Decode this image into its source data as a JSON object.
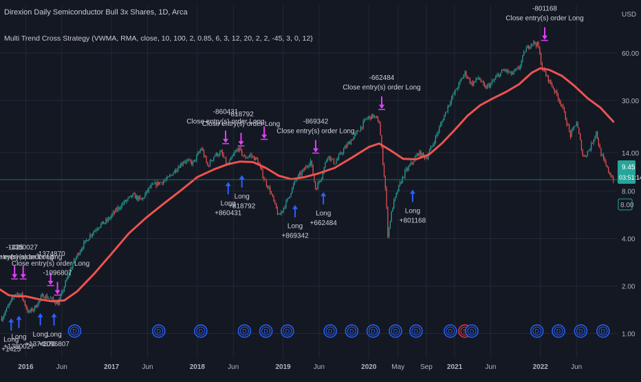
{
  "header": {
    "title": "Direxion Daily Semiconductor Bull 3x Shares, 1D, Arca",
    "subtitle": "Multi Trend Cross Strategy (VWMA, RMA, close, 10, 100, 2, 0.85, 6, 3, 12, 20, 2, 2, -45, 3, 0, 12)"
  },
  "colors": {
    "background": "#141823",
    "grid": "#232837",
    "ma_line": "#ef5350",
    "candle_up": "#26a69a",
    "candle_down": "#ef5350",
    "entry_arrow": "#2962ff",
    "exit_arrow": "#e040fb",
    "price_badge": "#26a69a",
    "dividend_marker": "#2962ff",
    "split_marker": "#f23645"
  },
  "chart_data": {
    "type": "candlestick",
    "title": "Direxion Daily Semiconductor Bull 3x Shares, 1D, Arca",
    "y_scale": "log",
    "currency": "USD",
    "ylim": [
      0.7,
      120
    ],
    "y_ticks": [
      "1.00",
      "2.00",
      "4.00",
      "8.00",
      "14.00",
      "30.00",
      "60.00"
    ],
    "x_ticks": [
      "2016",
      "Jun",
      "2017",
      "Jun",
      "2018",
      "Jun",
      "2019",
      "Jun",
      "2020",
      "May",
      "Sep",
      "2021",
      "Jun",
      "2022",
      "Jun"
    ],
    "x_tick_positions": [
      2016.0,
      2016.42,
      2017.0,
      2017.42,
      2018.0,
      2018.42,
      2019.0,
      2019.42,
      2020.0,
      2020.34,
      2020.67,
      2021.0,
      2021.42,
      2022.0,
      2022.42
    ],
    "xlim": [
      2015.7,
      2022.9
    ],
    "price_path": [
      [
        2015.72,
        1.25
      ],
      [
        2015.8,
        1.5
      ],
      [
        2015.88,
        1.8
      ],
      [
        2015.95,
        1.75
      ],
      [
        2016.03,
        1.35
      ],
      [
        2016.1,
        1.45
      ],
      [
        2016.2,
        1.75
      ],
      [
        2016.3,
        1.65
      ],
      [
        2016.38,
        1.55
      ],
      [
        2016.45,
        2.0
      ],
      [
        2016.55,
        2.8
      ],
      [
        2016.65,
        3.5
      ],
      [
        2016.75,
        4.2
      ],
      [
        2016.85,
        4.8
      ],
      [
        2016.95,
        5.2
      ],
      [
        2017.05,
        6.0
      ],
      [
        2017.15,
        6.8
      ],
      [
        2017.25,
        7.5
      ],
      [
        2017.35,
        7.0
      ],
      [
        2017.45,
        8.5
      ],
      [
        2017.55,
        9.0
      ],
      [
        2017.65,
        9.5
      ],
      [
        2017.75,
        11.0
      ],
      [
        2017.85,
        12.5
      ],
      [
        2017.95,
        12.0
      ],
      [
        2018.05,
        15.0
      ],
      [
        2018.12,
        11.5
      ],
      [
        2018.2,
        13.5
      ],
      [
        2018.28,
        14.0
      ],
      [
        2018.35,
        11.5
      ],
      [
        2018.42,
        13.5
      ],
      [
        2018.48,
        15.0
      ],
      [
        2018.55,
        13.0
      ],
      [
        2018.62,
        13.5
      ],
      [
        2018.7,
        12.5
      ],
      [
        2018.78,
        9.5
      ],
      [
        2018.85,
        8.0
      ],
      [
        2018.95,
        5.5
      ],
      [
        2019.05,
        7.0
      ],
      [
        2019.15,
        9.5
      ],
      [
        2019.25,
        11.0
      ],
      [
        2019.32,
        12.5
      ],
      [
        2019.38,
        8.2
      ],
      [
        2019.45,
        10.0
      ],
      [
        2019.52,
        13.5
      ],
      [
        2019.6,
        12.0
      ],
      [
        2019.7,
        14.5
      ],
      [
        2019.8,
        17.0
      ],
      [
        2019.9,
        20.0
      ],
      [
        2019.97,
        23.0
      ],
      [
        2020.05,
        24.0
      ],
      [
        2020.12,
        22.0
      ],
      [
        2020.2,
        7.5
      ],
      [
        2020.22,
        4.2
      ],
      [
        2020.28,
        6.5
      ],
      [
        2020.35,
        8.5
      ],
      [
        2020.42,
        10.5
      ],
      [
        2020.5,
        12.0
      ],
      [
        2020.58,
        14.0
      ],
      [
        2020.67,
        13.0
      ],
      [
        2020.75,
        16.0
      ],
      [
        2020.85,
        22.0
      ],
      [
        2020.95,
        30.0
      ],
      [
        2021.05,
        38.0
      ],
      [
        2021.12,
        45.0
      ],
      [
        2021.2,
        38.0
      ],
      [
        2021.28,
        42.0
      ],
      [
        2021.35,
        36.0
      ],
      [
        2021.42,
        38.0
      ],
      [
        2021.5,
        43.0
      ],
      [
        2021.58,
        47.0
      ],
      [
        2021.66,
        44.0
      ],
      [
        2021.75,
        48.0
      ],
      [
        2021.82,
        62.0
      ],
      [
        2021.9,
        70.0
      ],
      [
        2021.97,
        68.0
      ],
      [
        2022.02,
        48.0
      ],
      [
        2022.08,
        42.0
      ],
      [
        2022.15,
        36.0
      ],
      [
        2022.25,
        28.0
      ],
      [
        2022.35,
        18.0
      ],
      [
        2022.42,
        22.0
      ],
      [
        2022.5,
        13.0
      ],
      [
        2022.58,
        15.0
      ],
      [
        2022.65,
        19.0
      ],
      [
        2022.7,
        14.0
      ],
      [
        2022.78,
        11.0
      ],
      [
        2022.85,
        9.45
      ]
    ],
    "moving_average": [
      [
        2015.7,
        1.9
      ],
      [
        2015.8,
        1.75
      ],
      [
        2015.9,
        1.72
      ],
      [
        2016.0,
        1.72
      ],
      [
        2016.15,
        1.65
      ],
      [
        2016.3,
        1.6
      ],
      [
        2016.45,
        1.62
      ],
      [
        2016.6,
        1.85
      ],
      [
        2016.8,
        2.4
      ],
      [
        2017.0,
        3.2
      ],
      [
        2017.2,
        4.3
      ],
      [
        2017.4,
        5.4
      ],
      [
        2017.6,
        6.6
      ],
      [
        2017.8,
        8.0
      ],
      [
        2018.0,
        9.8
      ],
      [
        2018.2,
        11.0
      ],
      [
        2018.35,
        11.8
      ],
      [
        2018.5,
        12.3
      ],
      [
        2018.65,
        12.2
      ],
      [
        2018.8,
        11.2
      ],
      [
        2018.95,
        10.0
      ],
      [
        2019.1,
        9.5
      ],
      [
        2019.25,
        9.8
      ],
      [
        2019.4,
        10.3
      ],
      [
        2019.6,
        11.2
      ],
      [
        2019.8,
        13.0
      ],
      [
        2020.0,
        15.2
      ],
      [
        2020.12,
        16.0
      ],
      [
        2020.25,
        14.5
      ],
      [
        2020.4,
        12.8
      ],
      [
        2020.55,
        12.7
      ],
      [
        2020.7,
        13.6
      ],
      [
        2020.85,
        16.0
      ],
      [
        2021.0,
        19.5
      ],
      [
        2021.15,
        24.0
      ],
      [
        2021.3,
        28.0
      ],
      [
        2021.45,
        31.0
      ],
      [
        2021.6,
        34.0
      ],
      [
        2021.75,
        38.0
      ],
      [
        2021.9,
        45.0
      ],
      [
        2022.0,
        48.0
      ],
      [
        2022.1,
        47.0
      ],
      [
        2022.25,
        43.0
      ],
      [
        2022.4,
        37.0
      ],
      [
        2022.55,
        31.0
      ],
      [
        2022.7,
        27.0
      ],
      [
        2022.85,
        22.0
      ]
    ],
    "signals": [
      {
        "type": "entry",
        "x": 2015.83,
        "price": 1.3,
        "labels": [
          "Long",
          "+1425"
        ]
      },
      {
        "type": "entry",
        "x": 2015.92,
        "price": 1.35,
        "labels": [
          "Long",
          "+1380027"
        ]
      },
      {
        "type": "entry",
        "x": 2016.17,
        "price": 1.4,
        "labels": [
          "Long",
          "+1374870"
        ]
      },
      {
        "type": "entry",
        "x": 2016.33,
        "price": 1.4,
        "labels": [
          "Long",
          "+1096807"
        ]
      },
      {
        "type": "exit",
        "x": 2015.87,
        "price": 2.15,
        "labels": [
          "-1425",
          "Close entry(s) order Long"
        ]
      },
      {
        "type": "exit",
        "x": 2015.97,
        "price": 2.15,
        "labels": [
          "-1380027",
          "Close entry(s) order Long"
        ]
      },
      {
        "type": "exit",
        "x": 2016.29,
        "price": 1.95,
        "labels": [
          "-1374870",
          "Close entry(s) order Long"
        ]
      },
      {
        "type": "exit",
        "x": 2016.37,
        "price": 1.7,
        "labels": [
          "-1096807"
        ]
      },
      {
        "type": "entry",
        "x": 2018.36,
        "price": 9.5,
        "labels": [
          "Long",
          "+860431"
        ]
      },
      {
        "type": "entry",
        "x": 2018.52,
        "price": 10.5,
        "labels": [
          "Long",
          "+818792"
        ]
      },
      {
        "type": "exit",
        "x": 2018.33,
        "price": 15.5,
        "labels": [
          "-860431",
          "Close entry(s) order Long"
        ]
      },
      {
        "type": "exit",
        "x": 2018.51,
        "price": 15.0,
        "labels": [
          "-818792",
          "Close entry(s) order Long"
        ]
      },
      {
        "type": "exit",
        "x": 2018.78,
        "price": 16.5,
        "labels": []
      },
      {
        "type": "entry",
        "x": 2019.14,
        "price": 6.8,
        "labels": [
          "Long",
          "+869342"
        ]
      },
      {
        "type": "entry",
        "x": 2019.47,
        "price": 8.2,
        "labels": [
          "Long",
          "+662484"
        ]
      },
      {
        "type": "exit",
        "x": 2019.38,
        "price": 13.5,
        "labels": [
          "-869342",
          "Close entry(s) order Long"
        ]
      },
      {
        "type": "exit",
        "x": 2020.15,
        "price": 25.5,
        "labels": [
          "-662484",
          "Close entry(s) order Long"
        ]
      },
      {
        "type": "entry",
        "x": 2020.51,
        "price": 8.5,
        "labels": [
          "Long",
          "+801168"
        ]
      },
      {
        "type": "exit",
        "x": 2022.05,
        "price": 70.0,
        "labels": [
          "-801168",
          "Close entry(s) order Long"
        ]
      }
    ],
    "events": [
      {
        "type": "dividend",
        "x": 2016.57,
        "label": "D"
      },
      {
        "type": "dividend",
        "x": 2017.55,
        "label": "D"
      },
      {
        "type": "dividend",
        "x": 2018.04,
        "label": "D"
      },
      {
        "type": "dividend",
        "x": 2018.55,
        "label": "D"
      },
      {
        "type": "dividend",
        "x": 2018.8,
        "label": "D"
      },
      {
        "type": "dividend",
        "x": 2019.05,
        "label": "D"
      },
      {
        "type": "dividend",
        "x": 2019.55,
        "label": "D"
      },
      {
        "type": "dividend",
        "x": 2019.8,
        "label": "D"
      },
      {
        "type": "dividend",
        "x": 2020.05,
        "label": "D"
      },
      {
        "type": "dividend",
        "x": 2020.31,
        "label": "D"
      },
      {
        "type": "dividend",
        "x": 2020.55,
        "label": "D"
      },
      {
        "type": "dividend",
        "x": 2020.95,
        "label": "D"
      },
      {
        "type": "split",
        "x": 2021.12,
        "label": "S"
      },
      {
        "type": "dividend",
        "x": 2021.2,
        "label": "D"
      },
      {
        "type": "dividend",
        "x": 2021.96,
        "label": "D"
      },
      {
        "type": "dividend",
        "x": 2022.21,
        "label": "D"
      },
      {
        "type": "dividend",
        "x": 2022.47,
        "label": "D"
      },
      {
        "type": "dividend",
        "x": 2022.73,
        "label": "D"
      }
    ],
    "last_price": {
      "value": "9.45",
      "countdown": "03:51:14",
      "secondary": "8.00"
    },
    "horizontal_line": 9.45
  }
}
